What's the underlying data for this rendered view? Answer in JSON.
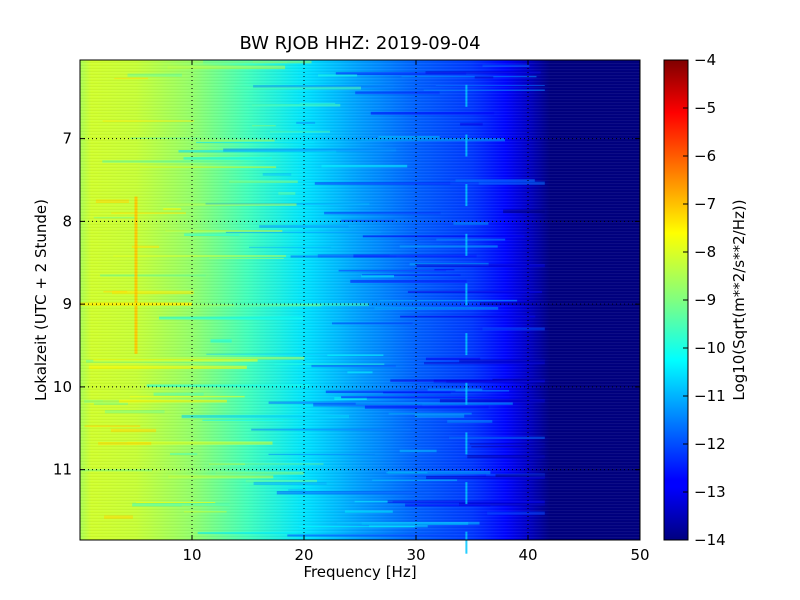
{
  "chart_data": {
    "type": "heatmap",
    "title": "BW RJOB HHZ: 2019-09-04",
    "xlabel": "Frequency [Hz]",
    "ylabel": "Lokalzeit (UTC + 2 Stunde)",
    "xlim": [
      0,
      50
    ],
    "ylim": [
      11.85,
      6.05
    ],
    "y_axis_inverted": true,
    "x_ticks": [
      10,
      20,
      30,
      40,
      50
    ],
    "x_tick_labels": [
      "10",
      "20",
      "30",
      "40",
      "50"
    ],
    "y_ticks": [
      7,
      8,
      9,
      10,
      11
    ],
    "y_tick_labels": [
      "7",
      "8",
      "9",
      "10",
      "11"
    ],
    "grid": true,
    "grid_style": "dotted",
    "colormap": "jet",
    "colorbar": {
      "label": "Log10(Sqrt(m**2/s**2/Hz))",
      "min": -14,
      "max": -4,
      "ticks": [
        -4,
        -5,
        -6,
        -7,
        -8,
        -9,
        -10,
        -11,
        -12,
        -13,
        -14
      ],
      "tick_labels": [
        "−4",
        "−5",
        "−6",
        "−7",
        "−8",
        "−9",
        "−10",
        "−11",
        "−12",
        "−13",
        "−14"
      ]
    },
    "spectrum_profile": {
      "frequency_hz": [
        0,
        1,
        5,
        10,
        15,
        20,
        25,
        30,
        35,
        38,
        40,
        42,
        44,
        50
      ],
      "log10_amplitude": [
        -8.6,
        -8.2,
        -8.3,
        -8.8,
        -9.6,
        -10.5,
        -11.2,
        -11.8,
        -12.2,
        -12.7,
        -13.3,
        -14.0,
        -14.0,
        -14.0
      ]
    },
    "features": [
      {
        "type": "line",
        "frequency_hz": 5,
        "time_start": 7.7,
        "time_end": 9.6,
        "log10_amplitude": -7.2
      },
      {
        "type": "band",
        "time": 9.0,
        "freq_start": 0,
        "freq_end": 10,
        "log10_amplitude": -7.6
      },
      {
        "type": "line",
        "frequency_hz": 34.5,
        "log10_amplitude": -10.8
      }
    ]
  }
}
